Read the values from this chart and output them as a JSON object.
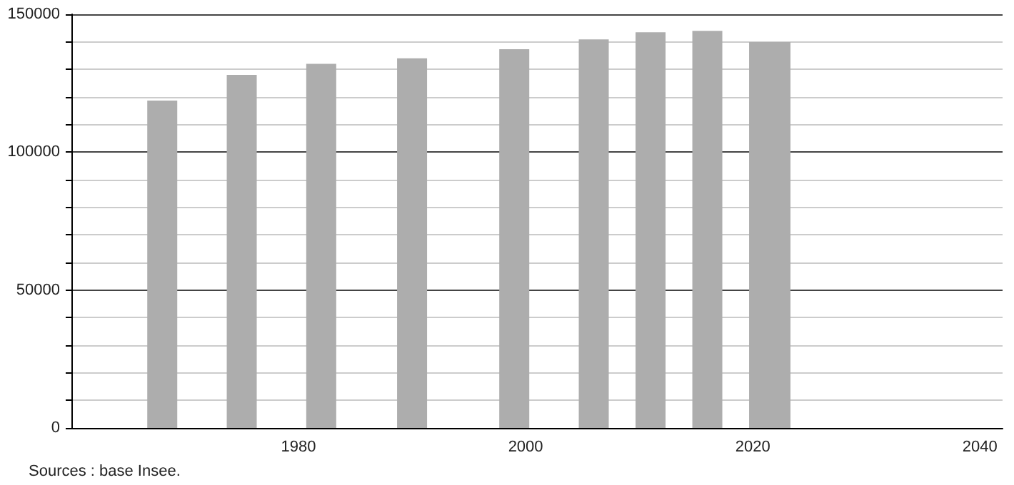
{
  "chart_data": {
    "type": "bar",
    "x": [
      1968,
      1975,
      1982,
      1990,
      1999,
      2006,
      2011,
      2016,
      2021,
      2022
    ],
    "values": [
      118700,
      128000,
      132000,
      134000,
      137300,
      140900,
      143500,
      144000,
      139900,
      139900
    ],
    "color": "#adadad",
    "xlim": [
      1960,
      2042
    ],
    "xticks": [
      1980,
      2000,
      2020,
      2040
    ],
    "ylim": [
      0,
      150000
    ],
    "yticks": [
      0,
      {
        "value": 10000,
        "label": null
      },
      {
        "value": 20000,
        "label": null
      },
      {
        "value": 30000,
        "label": null
      },
      {
        "value": 40000,
        "label": null
      },
      50000,
      {
        "value": 60000,
        "label": null
      },
      {
        "value": 70000,
        "label": null
      },
      {
        "value": 80000,
        "label": null
      },
      {
        "value": 90000,
        "label": null
      },
      100000,
      {
        "value": 110000,
        "label": null
      },
      {
        "value": 120000,
        "label": null
      },
      {
        "value": 130000,
        "label": null
      },
      {
        "value": 140000,
        "label": null
      },
      150000
    ],
    "grid": "y",
    "annotations": [
      "Sources : base Insee."
    ]
  }
}
